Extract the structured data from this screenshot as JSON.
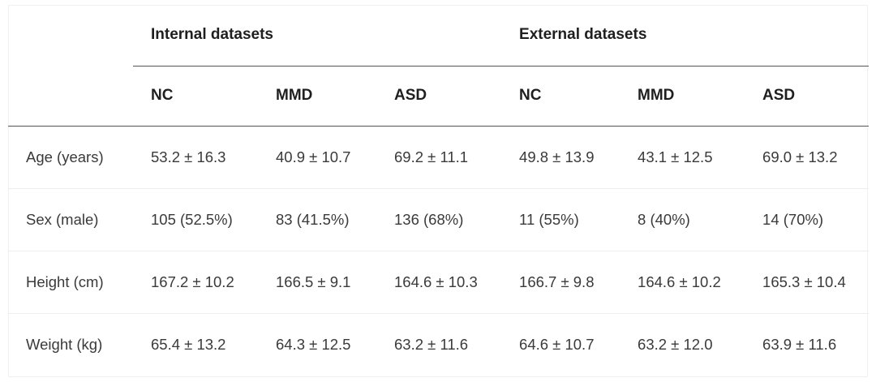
{
  "groups": {
    "internal": "Internal datasets",
    "external": "External datasets"
  },
  "columns": [
    "NC",
    "MMD",
    "ASD",
    "NC",
    "MMD",
    "ASD"
  ],
  "rows": [
    {
      "label": "Age (years)",
      "values": [
        "53.2 ± 16.3",
        "40.9 ± 10.7",
        "69.2 ± 11.1",
        "49.8 ± 13.9",
        "43.1 ± 12.5",
        "69.0 ± 13.2"
      ]
    },
    {
      "label": "Sex (male)",
      "values": [
        "105 (52.5%)",
        "83 (41.5%)",
        "136 (68%)",
        "11 (55%)",
        "8 (40%)",
        "14 (70%)"
      ]
    },
    {
      "label": "Height (cm)",
      "values": [
        "167.2 ± 10.2",
        "166.5 ± 9.1",
        "164.6 ± 10.3",
        "166.7 ± 9.8",
        "164.6 ± 10.2",
        "165.3 ± 10.4"
      ]
    },
    {
      "label": "Weight (kg)",
      "values": [
        "65.4 ± 13.2",
        "64.3 ± 12.5",
        "63.2 ± 11.6",
        "64.6 ± 10.7",
        "63.2 ± 12.0",
        "63.9 ± 11.6"
      ]
    }
  ]
}
